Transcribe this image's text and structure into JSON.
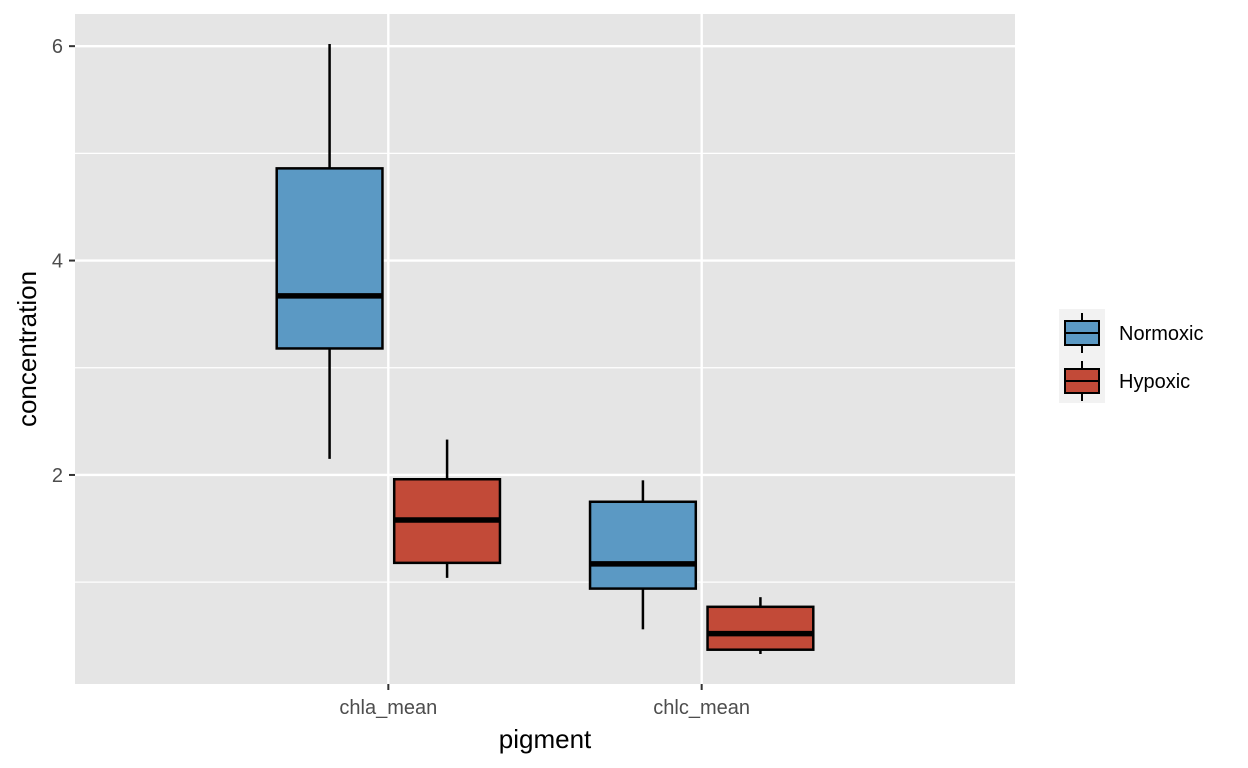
{
  "chart_data": {
    "type": "box",
    "xlabel": "pigment",
    "ylabel": "concentration",
    "categories": [
      "chla_mean",
      "chlc_mean"
    ],
    "yticks": [
      2,
      4,
      6
    ],
    "ylim": [
      0.05,
      6.3
    ],
    "grid": true,
    "legend_position": "right",
    "series": [
      {
        "name": "Normoxic",
        "color": "#5b99c4",
        "boxes": [
          {
            "category": "chla_mean",
            "min": 2.15,
            "q1": 3.18,
            "median": 3.67,
            "q3": 4.86,
            "max": 6.02
          },
          {
            "category": "chlc_mean",
            "min": 0.56,
            "q1": 0.94,
            "median": 1.17,
            "q3": 1.75,
            "max": 1.95
          }
        ]
      },
      {
        "name": "Hypoxic",
        "color": "#c24a38",
        "boxes": [
          {
            "category": "chla_mean",
            "min": 1.04,
            "q1": 1.18,
            "median": 1.58,
            "q3": 1.96,
            "max": 2.33
          },
          {
            "category": "chlc_mean",
            "min": 0.33,
            "q1": 0.37,
            "median": 0.52,
            "q3": 0.77,
            "max": 0.86
          }
        ]
      }
    ]
  }
}
